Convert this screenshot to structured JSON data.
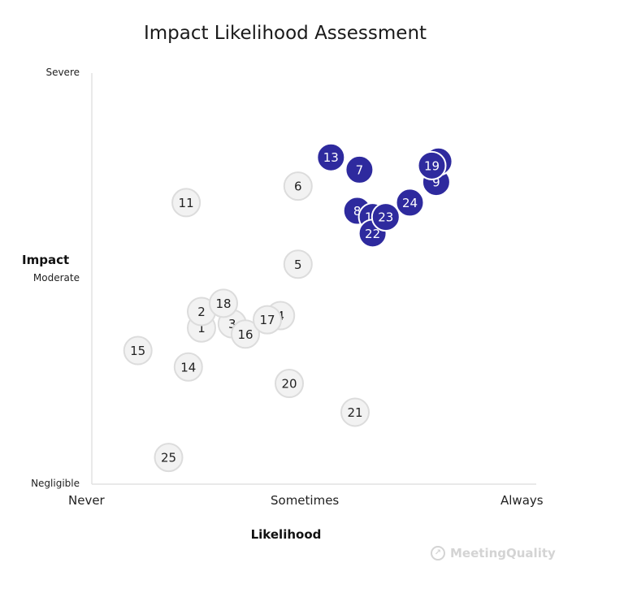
{
  "chart_data": {
    "type": "scatter",
    "title": "Impact Likelihood Assessment",
    "xlabel": "Likelihood",
    "ylabel": "Impact",
    "x_ticks": [
      {
        "value": 0,
        "label": "Never"
      },
      {
        "value": 50,
        "label": "Sometimes"
      },
      {
        "value": 100,
        "label": "Always"
      }
    ],
    "y_ticks": [
      {
        "value": 0,
        "label": "Negligible"
      },
      {
        "value": 50,
        "label": "Moderate"
      },
      {
        "value": 100,
        "label": "Severe"
      }
    ],
    "xlim": [
      0,
      100
    ],
    "ylim": [
      0,
      100
    ],
    "grid": false,
    "colors": {
      "high": "#2e2a9e",
      "low_fill": "#f2f2f2",
      "low_stroke": "#dcdcdc"
    },
    "points": [
      {
        "label": "1",
        "x": 25.0,
        "y": 38.0,
        "group": "low"
      },
      {
        "label": "2",
        "x": 25.0,
        "y": 42.0,
        "group": "low"
      },
      {
        "label": "3",
        "x": 32.0,
        "y": 39.0,
        "group": "low"
      },
      {
        "label": "4",
        "x": 43.0,
        "y": 41.0,
        "group": "low"
      },
      {
        "label": "5",
        "x": 47.0,
        "y": 53.5,
        "group": "low"
      },
      {
        "label": "6",
        "x": 47.0,
        "y": 72.5,
        "group": "low"
      },
      {
        "label": "7",
        "x": 61.0,
        "y": 76.5,
        "group": "high"
      },
      {
        "label": "8",
        "x": 60.5,
        "y": 66.5,
        "group": "high"
      },
      {
        "label": "9",
        "x": 78.5,
        "y": 73.5,
        "group": "high"
      },
      {
        "label": "10",
        "x": 64.0,
        "y": 65.0,
        "group": "high"
      },
      {
        "label": "11",
        "x": 21.5,
        "y": 68.5,
        "group": "low"
      },
      {
        "label": "12",
        "x": 79.0,
        "y": 78.5,
        "group": "high"
      },
      {
        "label": "13",
        "x": 54.5,
        "y": 79.5,
        "group": "high"
      },
      {
        "label": "14",
        "x": 22.0,
        "y": 28.5,
        "group": "low"
      },
      {
        "label": "15",
        "x": 10.5,
        "y": 32.5,
        "group": "low"
      },
      {
        "label": "16",
        "x": 35.0,
        "y": 36.5,
        "group": "low"
      },
      {
        "label": "17",
        "x": 40.0,
        "y": 40.0,
        "group": "low"
      },
      {
        "label": "18",
        "x": 30.0,
        "y": 44.0,
        "group": "low"
      },
      {
        "label": "19",
        "x": 77.5,
        "y": 77.5,
        "group": "high"
      },
      {
        "label": "20",
        "x": 45.0,
        "y": 24.5,
        "group": "low"
      },
      {
        "label": "21",
        "x": 60.0,
        "y": 17.5,
        "group": "low"
      },
      {
        "label": "22",
        "x": 64.0,
        "y": 61.0,
        "group": "high"
      },
      {
        "label": "23",
        "x": 67.0,
        "y": 65.0,
        "group": "high"
      },
      {
        "label": "24",
        "x": 72.5,
        "y": 68.5,
        "group": "high"
      },
      {
        "label": "25",
        "x": 17.5,
        "y": 6.5,
        "group": "low"
      }
    ]
  },
  "watermark": {
    "text": "MeetingQuality",
    "icon": "arrow-circle-icon"
  }
}
